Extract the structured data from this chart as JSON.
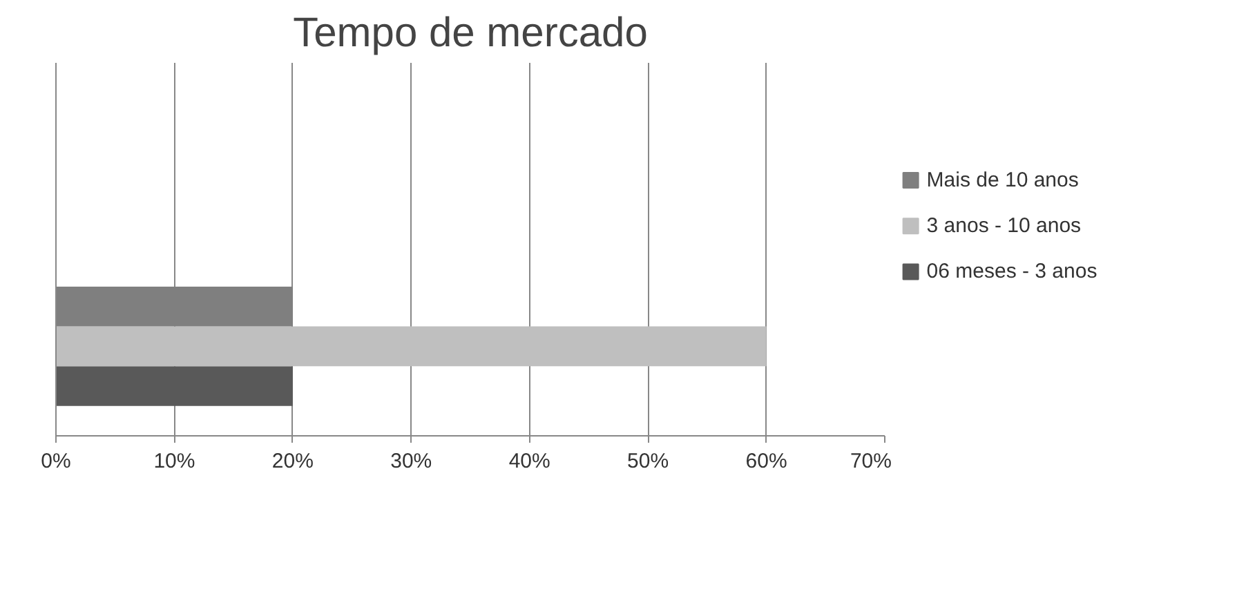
{
  "chart_data": {
    "type": "bar",
    "orientation": "horizontal",
    "title": "Tempo de mercado",
    "categories": [
      null
    ],
    "series": [
      {
        "name": "06 meses - 3 anos",
        "color": "#595959",
        "values": [
          20
        ]
      },
      {
        "name": "3 anos - 10 anos",
        "color": "#bfbfbf",
        "values": [
          60
        ]
      },
      {
        "name": "Mais de 10 anos",
        "color": "#7f7f7f",
        "values": [
          20
        ]
      }
    ],
    "xlim": [
      0,
      70
    ],
    "xticks": [
      {
        "value": 0,
        "label": "0%"
      },
      {
        "value": 10,
        "label": "10%"
      },
      {
        "value": 20,
        "label": "20%"
      },
      {
        "value": 30,
        "label": "30%"
      },
      {
        "value": 40,
        "label": "40%"
      },
      {
        "value": 50,
        "label": "50%"
      },
      {
        "value": 60,
        "label": "60%"
      },
      {
        "value": 70,
        "label": "70%"
      }
    ],
    "grid": "x",
    "legend": "right"
  }
}
